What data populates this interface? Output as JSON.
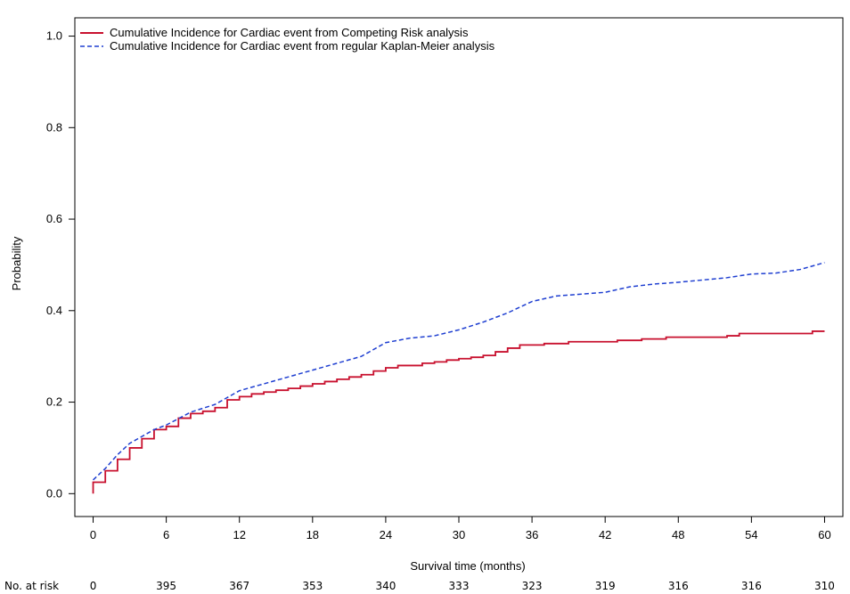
{
  "chart_data": {
    "type": "line",
    "title": "",
    "xlabel": "Survival time (months)",
    "ylabel": "Probability",
    "xlim": [
      -1.5,
      61.5
    ],
    "ylim": [
      -0.05,
      1.04
    ],
    "x_ticks": [
      0,
      6,
      12,
      18,
      24,
      30,
      36,
      42,
      48,
      54,
      60
    ],
    "y_ticks": [
      0.0,
      0.2,
      0.4,
      0.6,
      0.8,
      1.0
    ],
    "y_tick_labels": [
      "0.0",
      "0.2",
      "0.4",
      "0.6",
      "0.8",
      "1.0"
    ],
    "legend": {
      "position": "top-left"
    },
    "series": [
      {
        "name": "Cumulative Incidence for Cardiac event from Competing Risk analysis",
        "color": "#c8102e",
        "style": "solid-step",
        "x": [
          0,
          1,
          2,
          3,
          4,
          5,
          6,
          7,
          8,
          9,
          10,
          11,
          12,
          13,
          14,
          15,
          16,
          17,
          18,
          19,
          20,
          21,
          22,
          23,
          24,
          25,
          27,
          28,
          29,
          30,
          31,
          32,
          33,
          34,
          35,
          37,
          39,
          43,
          45,
          47,
          52,
          53,
          59,
          60
        ],
        "y": [
          0.025,
          0.05,
          0.075,
          0.1,
          0.12,
          0.14,
          0.147,
          0.165,
          0.175,
          0.18,
          0.188,
          0.205,
          0.212,
          0.218,
          0.222,
          0.226,
          0.23,
          0.235,
          0.24,
          0.245,
          0.25,
          0.255,
          0.26,
          0.268,
          0.275,
          0.28,
          0.285,
          0.288,
          0.292,
          0.295,
          0.298,
          0.302,
          0.31,
          0.318,
          0.325,
          0.328,
          0.332,
          0.335,
          0.338,
          0.342,
          0.345,
          0.35,
          0.355,
          0.355
        ]
      },
      {
        "name": "Cumulative Incidence for Cardiac event from regular Kaplan-Meier analysis",
        "color": "#1f3fd1",
        "style": "dashed",
        "x": [
          0,
          1,
          2,
          3,
          4,
          5,
          6,
          8,
          10,
          12,
          14,
          16,
          18,
          20,
          22,
          24,
          26,
          28,
          30,
          32,
          34,
          36,
          38,
          42,
          44,
          46,
          48,
          50,
          52,
          54,
          56,
          58,
          60
        ],
        "y": [
          0.03,
          0.055,
          0.085,
          0.11,
          0.125,
          0.14,
          0.15,
          0.178,
          0.195,
          0.225,
          0.24,
          0.255,
          0.27,
          0.285,
          0.3,
          0.33,
          0.34,
          0.345,
          0.358,
          0.375,
          0.395,
          0.42,
          0.432,
          0.44,
          0.452,
          0.458,
          0.462,
          0.467,
          0.472,
          0.48,
          0.482,
          0.49,
          0.505
        ]
      }
    ],
    "risk_table": {
      "label": "No. at risk",
      "values": [
        "0",
        "395",
        "367",
        "353",
        "340",
        "333",
        "323",
        "319",
        "316",
        "316",
        "310"
      ]
    }
  }
}
